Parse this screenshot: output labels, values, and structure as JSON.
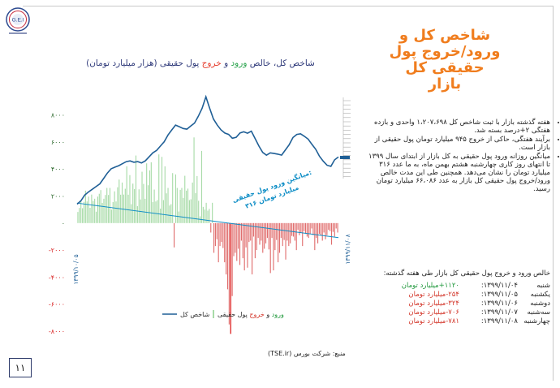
{
  "header": {
    "title_lines": [
      "شاخص کل و",
      "ورود/خروج پول حقیقی کل",
      "بازار"
    ]
  },
  "chart_title": {
    "part1": "شاخص کل، خالص ",
    "inflow": "ورود",
    "part2": " و ",
    "outflow": "خروج",
    "part3": " پول حقیقی (هزار میلیارد تومان)"
  },
  "chart_data": {
    "type": "line+bar",
    "x_tick_labels": [
      "۱۳۹۹/۱۰/۰۵",
      "۱۳۹۹/۱۱/۰۸"
    ],
    "y_tick_labels": [
      "۸۰۰۰",
      "۶۰۰۰",
      "۴۰۰۰",
      "۲۰۰۰",
      "۰",
      "-۲۰۰۰",
      "-۴۰۰۰",
      "-۶۰۰۰",
      "-۸۰۰۰"
    ],
    "y_tick_values": [
      8000,
      6000,
      4000,
      2000,
      0,
      -2000,
      -4000,
      -6000,
      -8000
    ],
    "ylim": [
      -8600,
      9600
    ],
    "annotation": [
      "میانگین ورود پول حقیقی:",
      "۳۱۶ میلیارد تومان"
    ],
    "legend": {
      "index": "شاخص کل",
      "inflow": "ورود",
      "and": " و ",
      "outflow": "خروج",
      "suffix": " پول حقیقی"
    },
    "bar_values": [
      820,
      1120,
      1680,
      1100,
      1570,
      2400,
      1600,
      1960,
      1130,
      2110,
      1640,
      1800,
      840,
      1960,
      2170,
      2440,
      1490,
      1800,
      2080,
      2600,
      2080,
      2600,
      1000,
      1550,
      2350,
      1600,
      2650,
      3220,
      2100,
      3000,
      2110,
      2540,
      4200,
      2100,
      3550,
      1400,
      2920,
      2520,
      5000,
      1250,
      2500,
      1750,
      3800,
      2900,
      1800,
      4420,
      2800,
      3900,
      4500,
      1550,
      2480,
      1600,
      1700,
      5080,
      1070,
      4900,
      1700,
      4200,
      2200,
      2600,
      1300,
      1400,
      3700,
      -1800,
      3600,
      2600,
      860,
      2460,
      2600,
      1860,
      3500,
      2400,
      2550,
      1700,
      1760,
      3000,
      6340,
      2220,
      3480,
      1650,
      500,
      5340,
      1200,
      1000,
      1500,
      920,
      1050,
      -700,
      1500,
      -2200,
      -1700,
      -1200,
      -2900,
      -1700,
      -1400,
      -1850,
      -2900,
      -3800,
      -4900,
      -7500,
      -8200,
      -5400,
      -2450,
      -2200,
      -2800,
      -1900,
      -3100,
      -1300,
      -2600,
      -3500,
      -1800,
      -3300,
      -1400,
      -1300,
      -3800,
      -1000,
      -2600,
      -2000,
      -1100,
      -1600,
      -1300,
      -2200,
      -1900,
      -1500,
      -1100,
      -1950,
      -3700,
      -1100,
      -3500,
      -2000,
      -1250,
      -2900,
      -2200,
      -1100,
      -1700,
      -1250,
      -2700,
      -1300,
      -1700,
      -1500,
      -950,
      -1000,
      -1300,
      -2000,
      -500,
      -900,
      -700,
      -1700,
      -600,
      -800,
      -1000,
      -1100,
      -800,
      -400,
      -900,
      -2000,
      -1100,
      -1500,
      -800,
      -900,
      -1300,
      -700,
      -1200,
      -900,
      -500,
      -600,
      -1600,
      -650,
      -1000,
      -400,
      -700
    ],
    "index_series": [
      1400,
      1650,
      2070,
      2300,
      2500,
      2700,
      2900,
      3300,
      3700,
      4020,
      4140,
      4250,
      4400,
      4550,
      4600,
      4500,
      4550,
      4450,
      4600,
      4900,
      5200,
      5380,
      5700,
      6020,
      6520,
      6900,
      7250,
      7130,
      7000,
      6950,
      7180,
      7400,
      7900,
      8490,
      9350,
      8500,
      7700,
      7250,
      6900,
      6660,
      6560,
      6280,
      6350,
      6670,
      6750,
      6650,
      6800,
      6260,
      5700,
      5230,
      5020,
      5200,
      5150,
      5100,
      5030,
      5420,
      5800,
      6330,
      6560,
      6610,
      6420,
      6210,
      5830,
      5460,
      4940,
      4580,
      4280,
      4200,
      4680,
      4890
    ],
    "trend_line": {
      "start": 1480,
      "end": -1080
    }
  },
  "bullets": [
    "هفته گذشته بازار با ثبت شاخص کل ۱،۲۰۷،۶۹۸ واحدی و بازده هفتگی ۲+درصد بسته شد.",
    "برآیند هفتگی، حاکی از خروج ۹۴۵ میلیارد تومان پول حقیقی از بازار است.",
    "میانگین روزانه ورود پول حقیقی به کل بازار از ابتدای سال ۱۳۹۹ تا انتهای روز کاری چهارشنبه هشتم بهمن ماه، به ما عدد ۳۱۶ میلیارد تومان را نشان می‌دهد. همچنین طی این مدت خالص ورود/خروج پول حقیقی کل بازار به عدد ۶۶،۰۸۶ میلیارد تومان رسید."
  ],
  "flow_table": {
    "title": "خالص ورود و خروج پول حقیقی کل بازار طی هفته گذشته:",
    "rows": [
      {
        "day": "شنبه",
        "date": "۱۳۹۹/۱۱/۰۴:",
        "value": "۱۱۲۰+میلیارد تومان",
        "sign": "pos"
      },
      {
        "day": "یکشنبه",
        "date": "۱۳۹۹/۱۱/۰۵:",
        "value": "۲۵۴-میلیارد تومان",
        "sign": "neg"
      },
      {
        "day": "دوشنبه",
        "date": "۱۳۹۹/۱۱/۰۶:",
        "value": "۳۲۴-میلیارد تومان",
        "sign": "neg"
      },
      {
        "day": "سه‌شنبه",
        "date": "۱۳۹۹/۱۱/۰۷:",
        "value": "۷۰۶-میلیارد تومان",
        "sign": "neg"
      },
      {
        "day": "چهارشنبه",
        "date": "۱۳۹۹/۱۱/۰۸:",
        "value": "۷۸۱-میلیارد تومان",
        "sign": "neg"
      }
    ]
  },
  "source_text": "منبع: شرکت بورس (TSE.ir)",
  "page_number": "۱۱",
  "colors": {
    "accent": "#f07d1e",
    "index_line": "#1f5f96",
    "bar_pos": "#a8dba8",
    "bar_neg": "#e06d6d",
    "outflow_peak": "#d80000",
    "trend": "#0f8ec6",
    "axis_red": "#d82020"
  }
}
